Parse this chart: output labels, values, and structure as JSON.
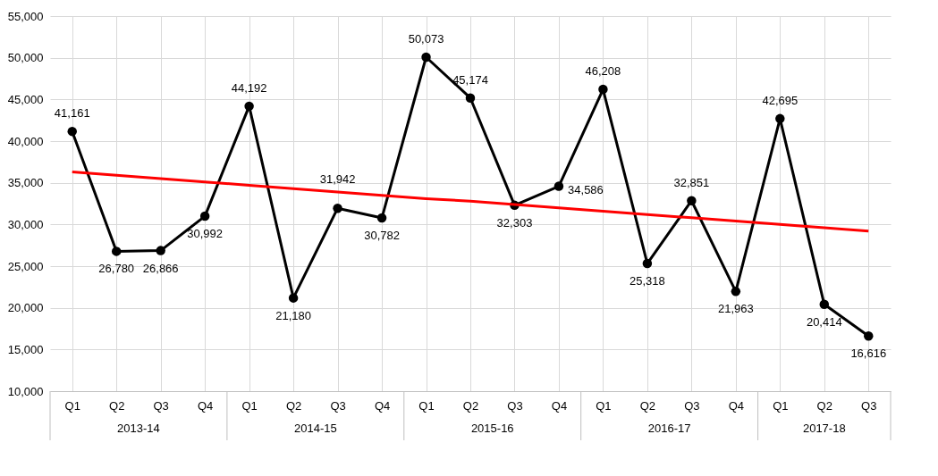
{
  "chart_data": {
    "type": "line",
    "categories": [
      "Q1",
      "Q2",
      "Q3",
      "Q4",
      "Q1",
      "Q2",
      "Q3",
      "Q4",
      "Q1",
      "Q2",
      "Q3",
      "Q4",
      "Q1",
      "Q2",
      "Q3",
      "Q4",
      "Q1",
      "Q2",
      "Q3"
    ],
    "annotations": [
      "2013-14",
      "2014-15",
      "2015-16",
      "2016-17",
      "2017-18"
    ],
    "series": [
      {
        "color": "#000000",
        "marker": "circle",
        "values": [
          41161,
          26780,
          26866,
          30992,
          44192,
          21180,
          31942,
          30782,
          50073,
          45174,
          32303,
          34586,
          46208,
          25318,
          32851,
          21963,
          42695,
          20414,
          16616
        ],
        "value_labels": [
          "41,161",
          "26,780",
          "26,866",
          "30,992",
          "44,192",
          "21,180",
          "31,942",
          "30,782",
          "50,073",
          "45,174",
          "32,303",
          "34,586",
          "46,208",
          "25,318",
          "32,851",
          "21,963",
          "42,695",
          "20,414",
          "16,616"
        ]
      },
      {
        "color": "#ff0000",
        "marker": "none",
        "values": [
          36300,
          35900,
          35500,
          35100,
          34700,
          34300,
          33900,
          33500,
          33100,
          32800,
          32400,
          32000,
          31600,
          31200,
          30800,
          30400,
          30000,
          29600,
          29200
        ]
      }
    ],
    "ylim": [
      10000,
      55000
    ],
    "yticks": [
      {
        "value": 10000,
        "label": "10,000"
      },
      {
        "value": 15000,
        "label": "15,000"
      },
      {
        "value": 20000,
        "label": "20,000"
      },
      {
        "value": 25000,
        "label": "25,000"
      },
      {
        "value": 30000,
        "label": "30,000"
      },
      {
        "value": 35000,
        "label": "35,000"
      },
      {
        "value": 40000,
        "label": "40,000"
      },
      {
        "value": 45000,
        "label": "45,000"
      },
      {
        "value": 50000,
        "label": "50,000"
      },
      {
        "value": 55000,
        "label": "55,000"
      }
    ],
    "grid": true
  }
}
